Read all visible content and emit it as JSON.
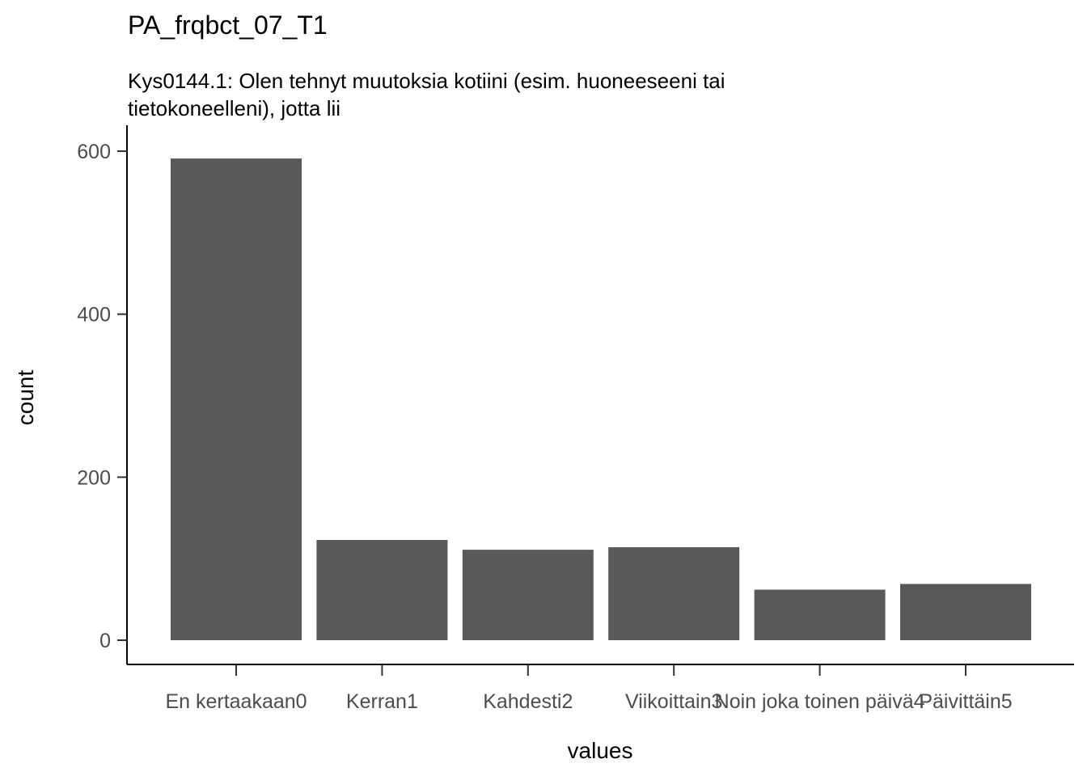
{
  "chart_data": {
    "type": "bar",
    "title": "PA_frqbct_07_T1",
    "subtitle_lines": [
      "Kys0144.1: Olen tehnyt muutoksia kotiini (esim. huoneeseeni tai",
      "tietokoneelleni), jotta lii"
    ],
    "xlabel": "values",
    "ylabel": "count",
    "categories": [
      "En kertaakaan0",
      "Kerran1",
      "Kahdesti2",
      "Viikoittain3",
      "Noin joka toinen päivä4",
      "Päivittäin5"
    ],
    "values": [
      591,
      123,
      111,
      114,
      62,
      69
    ],
    "ylim": [
      0,
      630
    ],
    "yticks": [
      0,
      200,
      400,
      600
    ],
    "ytick_labels": [
      "0",
      "200",
      "400",
      "600"
    ],
    "bar_color": "#595959",
    "grid": false,
    "legend": "none"
  }
}
